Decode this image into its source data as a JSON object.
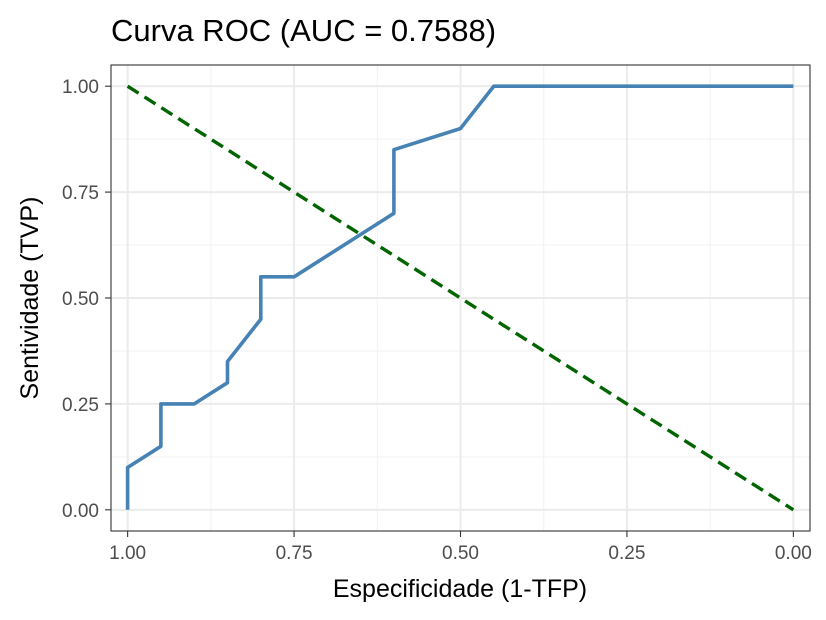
{
  "chart_data": {
    "type": "line",
    "title": "Curva ROC (AUC = 0.7588)",
    "xlabel": "Especificidade (1-TFP)",
    "ylabel": "Sentividade (TVP)",
    "x_reversed": true,
    "xlim": [
      1.025,
      -0.025
    ],
    "ylim": [
      -0.05,
      1.05
    ],
    "x_ticks": [
      1.0,
      0.75,
      0.5,
      0.25,
      0.0
    ],
    "x_tick_labels": [
      "1.00",
      "0.75",
      "0.50",
      "0.25",
      "0.00"
    ],
    "y_ticks": [
      0.0,
      0.25,
      0.5,
      0.75,
      1.0
    ],
    "y_tick_labels": [
      "0.00",
      "0.25",
      "0.50",
      "0.75",
      "1.00"
    ],
    "grid": true,
    "legend": "none",
    "series": [
      {
        "style": "solid",
        "color": "#4682b4",
        "points": [
          [
            1.0,
            0.0
          ],
          [
            1.0,
            0.1
          ],
          [
            0.95,
            0.15
          ],
          [
            0.95,
            0.25
          ],
          [
            0.9,
            0.25
          ],
          [
            0.85,
            0.3
          ],
          [
            0.85,
            0.35
          ],
          [
            0.8,
            0.45
          ],
          [
            0.8,
            0.55
          ],
          [
            0.75,
            0.55
          ],
          [
            0.6,
            0.7
          ],
          [
            0.6,
            0.85
          ],
          [
            0.5,
            0.9
          ],
          [
            0.45,
            1.0
          ],
          [
            0.0,
            1.0
          ]
        ]
      },
      {
        "style": "dashed",
        "color": "#006400",
        "points": [
          [
            1.0,
            1.0
          ],
          [
            0.0,
            0.0
          ]
        ]
      }
    ]
  }
}
